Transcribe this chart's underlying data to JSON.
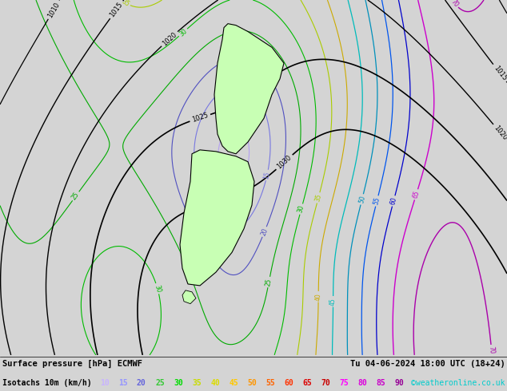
{
  "title_left": "Surface pressure [hPa] ECMWF",
  "title_right": "Tu 04-06-2024 18:00 UTC (18+24)",
  "subtitle_label": "Isotachs 10m (km/h)",
  "credit": "©weatheronline.co.uk",
  "background_color": "#d4d4d4",
  "map_background": "#d4d4d4",
  "fig_width": 6.34,
  "fig_height": 4.9,
  "dpi": 100,
  "isotach_values": [
    10,
    15,
    20,
    25,
    30,
    35,
    40,
    45,
    50,
    55,
    60,
    65,
    70,
    75,
    80,
    85,
    90
  ],
  "isotach_colors_legend": [
    "#c8b4ff",
    "#9696ff",
    "#6464dc",
    "#32c832",
    "#00dc00",
    "#c8dc00",
    "#dcdc00",
    "#ffc800",
    "#ff9600",
    "#ff6400",
    "#ff3200",
    "#dc0000",
    "#c80000",
    "#ff00ff",
    "#dc00dc",
    "#c800c8",
    "#960096"
  ],
  "isotach_line_colors": {
    "10": "#c896ff",
    "15": "#9696ff",
    "20": "#6464dc",
    "25": "#00aa00",
    "30": "#00c800",
    "35": "#c8c800",
    "40": "#c8a000",
    "45": "#00c8c8",
    "50": "#00aaaa",
    "55": "#0064ff",
    "60": "#0000ff",
    "65": "#c800c8",
    "70": "#aa00aa",
    "75": "#c800c8",
    "80": "#960096",
    "85": "#640064",
    "90": "#320032"
  },
  "pressure_label_color": "black",
  "nz_fill_color": "#c8ffc8"
}
